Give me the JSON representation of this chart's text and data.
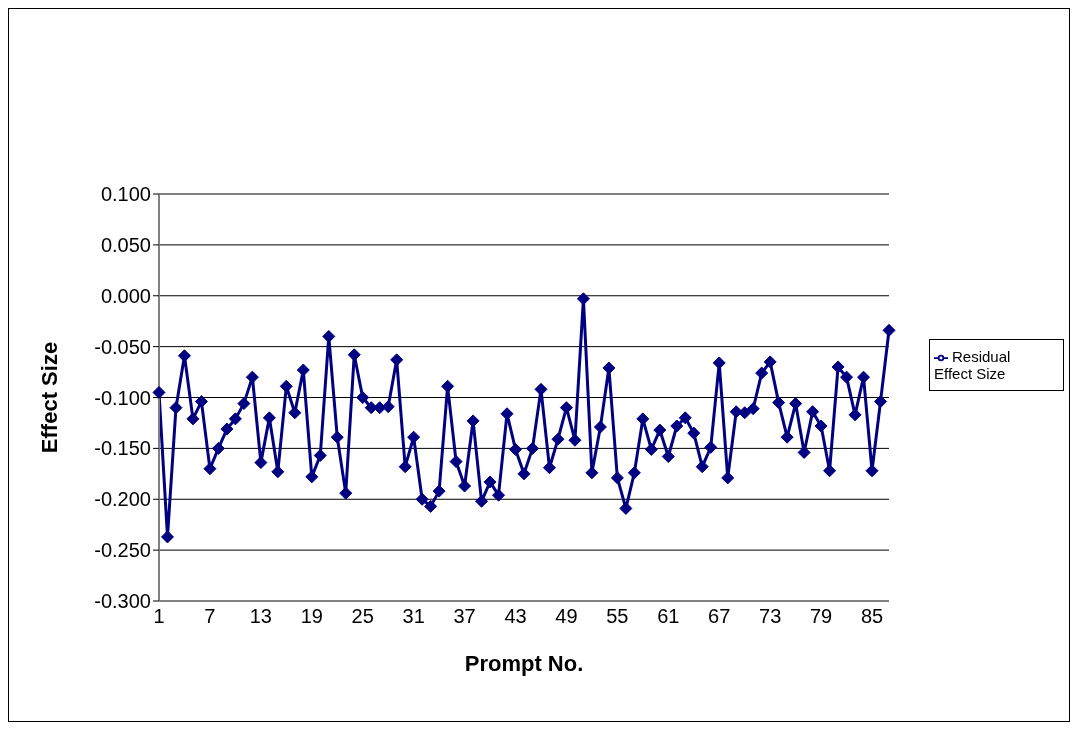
{
  "chart_data": {
    "type": "line",
    "xlabel": "Prompt No.",
    "ylabel": "Effect Size",
    "categories": [
      "1",
      null,
      null,
      null,
      null,
      null,
      "7",
      null,
      null,
      null,
      null,
      null,
      "13",
      null,
      null,
      null,
      null,
      null,
      "19",
      null,
      null,
      null,
      null,
      null,
      "25",
      null,
      null,
      null,
      null,
      null,
      "31",
      null,
      null,
      null,
      null,
      null,
      "37",
      null,
      null,
      null,
      null,
      null,
      "43",
      null,
      null,
      null,
      null,
      null,
      "49",
      null,
      null,
      null,
      null,
      null,
      "55",
      null,
      null,
      null,
      null,
      null,
      "61",
      null,
      null,
      null,
      null,
      null,
      "67",
      null,
      null,
      null,
      null,
      null,
      "73",
      null,
      null,
      null,
      null,
      null,
      "79",
      null,
      null,
      null,
      null,
      null,
      "85",
      null,
      null
    ],
    "series": [
      {
        "name": "Residual Effect Size",
        "color": "#000080",
        "values": [
          -0.095,
          -0.237,
          -0.11,
          -0.059,
          -0.121,
          -0.104,
          -0.17,
          -0.15,
          -0.131,
          -0.121,
          -0.106,
          -0.08,
          -0.164,
          -0.12,
          -0.173,
          -0.089,
          -0.115,
          -0.073,
          -0.178,
          -0.157,
          -0.04,
          -0.139,
          -0.194,
          -0.058,
          -0.1,
          -0.11,
          -0.11,
          -0.109,
          -0.063,
          -0.168,
          -0.139,
          -0.2,
          -0.207,
          -0.192,
          -0.089,
          -0.163,
          -0.187,
          -0.123,
          -0.202,
          -0.183,
          -0.196,
          -0.116,
          -0.151,
          -0.175,
          -0.15,
          -0.092,
          -0.169,
          -0.141,
          -0.11,
          -0.142,
          -0.003,
          -0.174,
          -0.129,
          -0.071,
          -0.179,
          -0.209,
          -0.174,
          -0.121,
          -0.151,
          -0.132,
          -0.158,
          -0.128,
          -0.12,
          -0.135,
          -0.168,
          -0.149,
          -0.066,
          -0.179,
          -0.114,
          -0.115,
          -0.111,
          -0.076,
          -0.065,
          -0.105,
          -0.139,
          -0.106,
          -0.154,
          -0.114,
          -0.128,
          -0.172,
          -0.07,
          -0.08,
          -0.117,
          -0.08,
          -0.172,
          -0.104,
          -0.034
        ]
      }
    ],
    "ylim": [
      -0.3,
      0.1
    ],
    "yticks": [
      {
        "value": -0.3,
        "label": "-0.300"
      },
      {
        "value": -0.25,
        "label": "-0.250"
      },
      {
        "value": -0.2,
        "label": "-0.200"
      },
      {
        "value": -0.15,
        "label": "-0.150"
      },
      {
        "value": -0.1,
        "label": "-0.100"
      },
      {
        "value": -0.05,
        "label": "-0.050"
      },
      {
        "value": 0,
        "label": "0.000"
      },
      {
        "value": 0.05,
        "label": "0.050"
      },
      {
        "value": 0.1,
        "label": "0.100"
      }
    ],
    "grid": "y",
    "legend": "right",
    "marker": "diamond",
    "line_style": "solid"
  }
}
